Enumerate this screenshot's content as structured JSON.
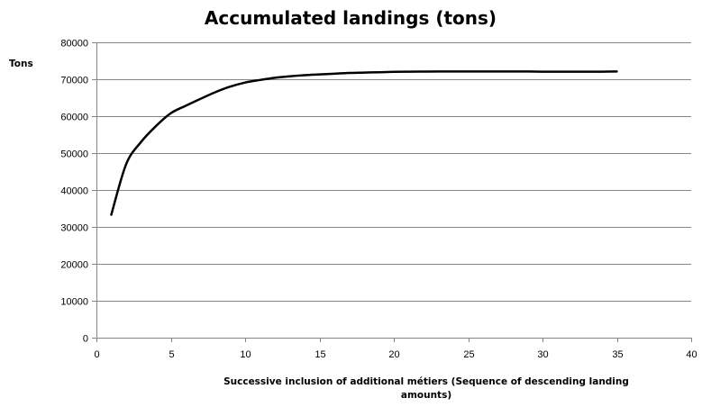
{
  "chart_data": {
    "type": "line",
    "title": "Accumulated landings (tons)",
    "ylabel": "Tons",
    "xlabel_lines": [
      "Successive inclusion of additional métiers (Sequence of descending landing",
      "amounts)"
    ],
    "xlim": [
      0,
      40
    ],
    "ylim": [
      0,
      80000
    ],
    "x_ticks": [
      0,
      5,
      10,
      15,
      20,
      25,
      30,
      35,
      40
    ],
    "y_ticks": [
      0,
      10000,
      20000,
      30000,
      40000,
      50000,
      60000,
      70000,
      80000
    ],
    "grid": true,
    "legend": "none",
    "line_color": "#000000",
    "series": [
      {
        "x": [
          1,
          2,
          3,
          4,
          5,
          6,
          7,
          8,
          9,
          10,
          11,
          12,
          13,
          14,
          15,
          16,
          17,
          18,
          19,
          20,
          21,
          22,
          23,
          24,
          25,
          26,
          27,
          28,
          29,
          30,
          31,
          32,
          33,
          34,
          35
        ],
        "values": [
          33300,
          47000,
          53000,
          57300,
          60800,
          62800,
          64700,
          66500,
          68000,
          69100,
          69800,
          70400,
          70800,
          71100,
          71300,
          71500,
          71700,
          71800,
          71900,
          72000,
          72050,
          72080,
          72100,
          72100,
          72100,
          72100,
          72100,
          72100,
          72100,
          72050,
          72050,
          72050,
          72050,
          72050,
          72100
        ]
      }
    ]
  }
}
